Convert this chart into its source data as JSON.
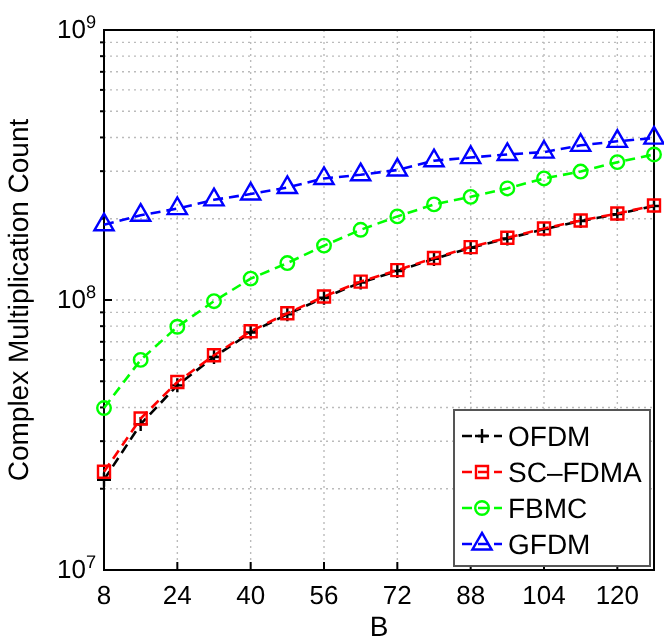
{
  "chart_data": {
    "type": "line",
    "xlabel": "B",
    "ylabel": "Complex Multiplication Count",
    "log": "y",
    "grid": true,
    "legend": "bottom right",
    "line_style": "dashed",
    "x": [
      8,
      16,
      24,
      32,
      40,
      48,
      56,
      64,
      72,
      80,
      88,
      96,
      104,
      112,
      120,
      128
    ],
    "xlim": [
      8,
      128
    ],
    "xticks": [
      8,
      24,
      40,
      56,
      72,
      88,
      104,
      120
    ],
    "ylim": [
      10000000,
      1000000000
    ],
    "yticks": [
      {
        "value": 10000000,
        "label": "10$^{7}$"
      },
      {
        "value": 20000000,
        "label": null
      },
      {
        "value": 30000000,
        "label": null
      },
      {
        "value": 40000000,
        "label": null
      },
      {
        "value": 50000000,
        "label": null
      },
      {
        "value": 60000000,
        "label": null
      },
      {
        "value": 70000000,
        "label": null
      },
      {
        "value": 80000000,
        "label": null
      },
      {
        "value": 90000000,
        "label": null
      },
      {
        "value": 100000000,
        "label": "10$^{8}$"
      },
      {
        "value": 200000000,
        "label": null
      },
      {
        "value": 300000000,
        "label": null
      },
      {
        "value": 400000000,
        "label": null
      },
      {
        "value": 500000000,
        "label": null
      },
      {
        "value": 600000000,
        "label": null
      },
      {
        "value": 700000000,
        "label": null
      },
      {
        "value": 800000000,
        "label": null
      },
      {
        "value": 900000000,
        "label": null
      },
      {
        "value": 1000000000,
        "label": "10$^{9}$"
      }
    ],
    "series": [
      {
        "name": "OFDM",
        "color": "#000000",
        "marker": "cross",
        "values": [
          21600000,
          34700000,
          48300000,
          61500000,
          75800000,
          88500000,
          102000000,
          116000000,
          128000000,
          142000000,
          156000000,
          169000000,
          183000000,
          196000000,
          208000000,
          223000000
        ]
      },
      {
        "name": "SC–FDMA",
        "color": "#ff0000",
        "marker": "square",
        "values": [
          23100000,
          36400000,
          49700000,
          62400000,
          76600000,
          89300000,
          103000000,
          117000000,
          129000000,
          143000000,
          157000000,
          170000000,
          184000000,
          197000000,
          209000000,
          224000000
        ]
      },
      {
        "name": "FBMC",
        "color": "#00ff00",
        "marker": "circle",
        "values": [
          39800000,
          60000000,
          79600000,
          99000000,
          120000000,
          137000000,
          159000000,
          182000000,
          204000000,
          226000000,
          241000000,
          259000000,
          282000000,
          299000000,
          324000000,
          346000000
        ]
      },
      {
        "name": "GFDM",
        "color": "#0000ff",
        "marker": "triangle",
        "values": [
          190000000,
          206000000,
          218000000,
          235000000,
          247000000,
          261000000,
          282000000,
          291000000,
          303000000,
          328000000,
          337000000,
          346000000,
          353000000,
          374000000,
          387000000,
          398000000
        ]
      }
    ]
  }
}
